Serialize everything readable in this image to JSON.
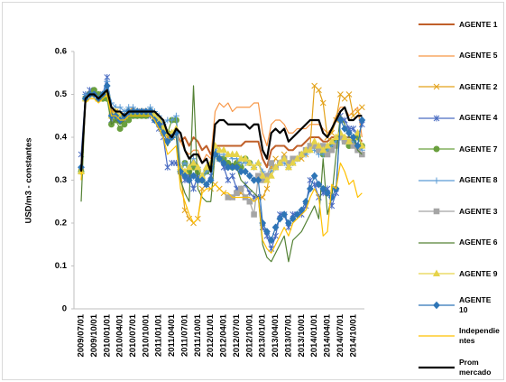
{
  "chart_data": {
    "type": "line",
    "y_label": "USD/m3 - constantes",
    "categories": [
      "2009/07/01",
      null,
      null,
      "2009/10/01",
      null,
      null,
      "2010/01/01",
      null,
      null,
      "2010/04/01",
      null,
      null,
      "2010/07/01",
      null,
      null,
      "2010/10/01",
      null,
      null,
      "2011/01/01",
      null,
      null,
      "2011/04/01",
      null,
      null,
      "2011/07/01",
      null,
      null,
      "2011/10/01",
      null,
      null,
      "2012/01/01",
      null,
      null,
      "2012/04/01",
      null,
      null,
      "2012/07/01",
      null,
      null,
      "2012/10/01",
      null,
      null,
      "2013/01/01",
      null,
      null,
      "2013/04/01",
      null,
      null,
      "2013/07/01",
      null,
      null,
      "2013/10/01",
      null,
      null,
      "2014/01/01",
      null,
      null,
      "2014/04/01",
      null,
      null,
      "2014/07/01",
      null,
      null,
      "2014/10/01",
      null,
      null
    ],
    "ylim": [
      0,
      0.6
    ],
    "yticks": [
      0,
      0.1,
      0.2,
      0.3,
      0.4,
      0.5,
      0.6
    ],
    "grid": false,
    "series": [
      {
        "name": "AGENTE 1",
        "color": "#c0602a",
        "width": 2,
        "marker": null,
        "values": [
          0.32,
          0.49,
          0.5,
          0.5,
          0.49,
          0.5,
          0.51,
          0.46,
          0.46,
          0.45,
          0.45,
          0.46,
          0.46,
          0.46,
          0.46,
          0.46,
          0.46,
          0.45,
          0.44,
          0.43,
          0.41,
          0.4,
          0.41,
          0.39,
          0.4,
          0.38,
          0.4,
          0.39,
          0.37,
          0.38,
          0.36,
          0.38,
          0.38,
          0.38,
          0.38,
          0.38,
          0.38,
          0.38,
          0.39,
          0.39,
          0.39,
          0.39,
          0.35,
          0.33,
          0.37,
          0.38,
          0.38,
          0.38,
          0.37,
          0.37,
          0.38,
          0.38,
          0.39,
          0.4,
          0.4,
          0.4,
          0.39,
          0.39,
          0.4,
          0.4,
          0.41,
          0.4,
          0.4,
          0.4,
          0.4,
          0.39
        ]
      },
      {
        "name": "AGENTE 5",
        "color": "#f79646",
        "width": 1.2,
        "marker": null,
        "values": [
          0.32,
          0.49,
          0.5,
          0.5,
          0.49,
          0.5,
          0.5,
          0.46,
          0.46,
          0.46,
          0.46,
          0.46,
          0.47,
          0.46,
          0.46,
          0.46,
          0.46,
          0.46,
          0.45,
          0.43,
          0.4,
          0.4,
          0.41,
          0.39,
          0.37,
          0.36,
          0.37,
          0.37,
          0.34,
          0.36,
          0.35,
          0.46,
          0.48,
          0.47,
          0.48,
          0.46,
          0.47,
          0.47,
          0.47,
          0.47,
          0.48,
          0.48,
          0.41,
          0.38,
          0.43,
          0.44,
          0.44,
          0.43,
          0.41,
          0.41,
          0.42,
          0.42,
          0.42,
          0.43,
          0.43,
          0.43,
          0.42,
          0.41,
          0.42,
          0.45,
          0.47,
          0.47,
          0.45,
          0.46,
          0.47,
          0.4
        ]
      },
      {
        "name": "AGENTE 2",
        "color": "#e3a21a",
        "width": 1.2,
        "marker": "x",
        "values": [
          0.32,
          0.49,
          0.5,
          0.5,
          0.49,
          0.5,
          0.5,
          0.46,
          0.46,
          0.45,
          0.45,
          0.46,
          0.46,
          0.46,
          0.46,
          0.46,
          0.46,
          0.45,
          0.44,
          0.42,
          0.4,
          0.4,
          0.41,
          0.32,
          0.23,
          0.21,
          0.2,
          0.21,
          0.28,
          0.29,
          0.28,
          0.29,
          0.28,
          0.27,
          0.26,
          0.26,
          0.27,
          0.27,
          0.26,
          0.27,
          0.26,
          0.26,
          0.26,
          0.28,
          0.33,
          0.35,
          0.34,
          0.36,
          0.33,
          0.34,
          0.35,
          0.35,
          0.36,
          0.38,
          0.52,
          0.51,
          0.48,
          0.4,
          0.41,
          0.44,
          0.5,
          0.49,
          0.5,
          0.45,
          0.46,
          0.47
        ]
      },
      {
        "name": "AGENTE 4",
        "color": "#4a6cc2",
        "width": 1.2,
        "marker": "star",
        "values": [
          0.36,
          0.5,
          0.51,
          0.5,
          0.5,
          0.5,
          0.54,
          0.44,
          0.45,
          0.44,
          0.44,
          0.45,
          0.45,
          0.45,
          0.46,
          0.45,
          0.45,
          0.44,
          0.42,
          0.4,
          0.33,
          0.34,
          0.34,
          0.32,
          0.3,
          0.31,
          0.28,
          0.31,
          0.3,
          0.29,
          0.31,
          0.37,
          0.35,
          0.33,
          0.3,
          0.31,
          0.28,
          0.28,
          0.29,
          0.27,
          0.26,
          0.26,
          0.19,
          0.17,
          0.14,
          0.17,
          0.22,
          0.22,
          0.19,
          0.22,
          0.22,
          0.22,
          0.24,
          0.3,
          0.29,
          0.26,
          0.27,
          0.28,
          0.24,
          0.27,
          0.45,
          0.44,
          0.42,
          0.42,
          0.4,
          0.43
        ]
      },
      {
        "name": "AGENTE 7",
        "color": "#6aa03e",
        "width": 1.2,
        "marker": "circle",
        "values": [
          0.32,
          0.49,
          0.5,
          0.51,
          0.5,
          0.49,
          0.49,
          0.43,
          0.44,
          0.42,
          0.43,
          0.44,
          0.45,
          0.45,
          0.45,
          0.45,
          0.46,
          0.45,
          0.44,
          0.42,
          0.41,
          0.44,
          0.44,
          0.32,
          0.34,
          0.32,
          0.33,
          0.32,
          0.3,
          0.32,
          0.33,
          0.36,
          0.35,
          0.35,
          0.34,
          0.33,
          0.34,
          0.33,
          0.35,
          0.34,
          null,
          null,
          null,
          null,
          null,
          null,
          null,
          null,
          null,
          null,
          null,
          null,
          null,
          null,
          0.38,
          0.37,
          0.36,
          0.37,
          0.38,
          0.39,
          0.4,
          0.39,
          0.38,
          0.39,
          0.4,
          0.38
        ]
      },
      {
        "name": "AGENTE 8",
        "color": "#5b9bd5",
        "width": 1.2,
        "marker": "plus",
        "values": [
          0.33,
          0.5,
          0.5,
          0.5,
          0.49,
          0.5,
          0.53,
          0.48,
          0.47,
          0.47,
          0.46,
          0.47,
          0.47,
          0.46,
          0.46,
          0.46,
          0.47,
          0.46,
          0.45,
          0.43,
          0.44,
          0.44,
          0.45,
          0.33,
          0.34,
          0.33,
          0.35,
          0.33,
          0.31,
          0.32,
          0.33,
          0.37,
          0.36,
          0.36,
          0.36,
          0.35,
          0.35,
          0.34,
          0.34,
          0.34,
          0.33,
          0.34,
          0.32,
          0.31,
          0.32,
          0.33,
          0.34,
          0.34,
          0.33,
          0.34,
          0.35,
          0.36,
          0.36,
          0.37,
          0.37,
          0.36,
          0.36,
          0.37,
          0.38,
          0.39,
          0.4,
          0.4,
          0.39,
          0.39,
          0.38,
          0.37
        ]
      },
      {
        "name": "AGENTE 3",
        "color": "#a5a5a5",
        "width": 1.2,
        "marker": "square",
        "values": [
          null,
          null,
          null,
          null,
          null,
          null,
          null,
          null,
          null,
          null,
          null,
          null,
          null,
          null,
          null,
          null,
          null,
          null,
          null,
          null,
          null,
          null,
          null,
          null,
          null,
          null,
          null,
          null,
          null,
          null,
          null,
          null,
          null,
          null,
          0.26,
          0.26,
          0.27,
          0.28,
          0.26,
          0.25,
          0.22,
          0.31,
          0.3,
          0.31,
          0.34,
          0.33,
          0.34,
          0.35,
          0.34,
          0.35,
          0.35,
          0.36,
          0.37,
          0.38,
          0.38,
          0.37,
          0.38,
          0.36,
          0.37,
          0.38,
          0.4,
          0.39,
          0.39,
          0.38,
          0.37,
          0.36
        ]
      },
      {
        "name": "AGENTE 6",
        "color": "#548235",
        "width": 1.2,
        "marker": null,
        "values": [
          0.25,
          0.49,
          0.5,
          0.5,
          0.49,
          0.5,
          0.51,
          0.43,
          0.44,
          0.43,
          0.44,
          0.45,
          0.45,
          0.45,
          0.45,
          0.45,
          0.46,
          0.44,
          0.44,
          0.4,
          0.38,
          0.4,
          0.4,
          0.3,
          0.27,
          0.25,
          0.52,
          0.28,
          0.26,
          0.25,
          0.25,
          0.36,
          0.35,
          0.34,
          0.33,
          0.34,
          0.33,
          0.3,
          0.29,
          0.28,
          0.27,
          0.26,
          0.15,
          0.12,
          0.11,
          0.13,
          0.15,
          0.17,
          0.11,
          0.16,
          0.17,
          0.18,
          0.2,
          0.22,
          0.24,
          0.21,
          0.35,
          0.22,
          0.26,
          0.36,
          0.45,
          0.43,
          0.4,
          0.4,
          0.37,
          0.36
        ]
      },
      {
        "name": "AGENTE 9",
        "color": "#e6d34a",
        "width": 1.2,
        "marker": "triangle",
        "values": [
          0.32,
          0.49,
          0.5,
          0.5,
          0.49,
          0.5,
          0.5,
          0.45,
          0.46,
          0.45,
          0.45,
          0.46,
          0.46,
          0.46,
          0.46,
          0.46,
          0.46,
          0.45,
          0.44,
          0.42,
          0.41,
          0.41,
          0.42,
          0.33,
          0.32,
          0.33,
          0.34,
          0.33,
          0.31,
          0.33,
          0.34,
          0.38,
          0.37,
          0.37,
          0.36,
          0.36,
          0.36,
          0.35,
          0.35,
          0.34,
          0.33,
          0.34,
          0.31,
          0.3,
          0.31,
          0.33,
          0.34,
          0.35,
          0.33,
          0.34,
          0.35,
          0.36,
          0.37,
          0.37,
          0.39,
          0.38,
          0.37,
          0.38,
          0.39,
          0.4,
          0.41,
          0.4,
          0.39,
          0.4,
          0.41,
          0.38
        ]
      },
      {
        "name": "AGENTE 10",
        "color": "#2e75b6",
        "width": 1.2,
        "marker": "diamond",
        "values": [
          0.33,
          0.49,
          0.5,
          0.5,
          0.49,
          0.5,
          0.52,
          0.45,
          0.45,
          0.44,
          0.45,
          0.46,
          0.46,
          0.46,
          0.46,
          0.46,
          0.46,
          0.44,
          0.43,
          0.41,
          0.39,
          0.4,
          0.41,
          0.32,
          0.31,
          0.3,
          0.31,
          0.3,
          0.3,
          0.29,
          0.3,
          0.36,
          0.35,
          0.34,
          0.33,
          0.33,
          0.33,
          0.32,
          0.32,
          0.31,
          0.3,
          0.3,
          0.2,
          0.18,
          0.16,
          0.19,
          0.21,
          0.22,
          0.2,
          0.21,
          0.22,
          0.23,
          0.25,
          0.28,
          0.31,
          0.29,
          0.28,
          0.27,
          0.26,
          0.28,
          0.44,
          0.42,
          0.41,
          0.4,
          0.38,
          0.44
        ]
      },
      {
        "name": "Independientes",
        "color": "#ffc000",
        "width": 1.2,
        "marker": null,
        "values": [
          0.3,
          0.48,
          0.49,
          0.49,
          0.48,
          0.49,
          0.5,
          0.45,
          0.45,
          0.44,
          0.44,
          0.45,
          0.45,
          0.45,
          0.45,
          0.45,
          0.45,
          0.44,
          0.42,
          0.4,
          0.36,
          0.37,
          0.38,
          0.28,
          0.25,
          0.22,
          0.2,
          0.21,
          0.27,
          0.28,
          0.28,
          0.29,
          0.28,
          0.27,
          0.27,
          0.26,
          0.26,
          0.26,
          0.26,
          0.26,
          0.25,
          0.26,
          0.16,
          0.14,
          0.13,
          0.15,
          0.17,
          0.19,
          0.17,
          0.2,
          0.21,
          0.22,
          0.23,
          0.26,
          0.28,
          0.26,
          0.17,
          0.18,
          0.29,
          0.28,
          0.34,
          0.32,
          0.29,
          0.3,
          0.26,
          0.27
        ]
      },
      {
        "name": "Prom mercado",
        "color": "#000000",
        "width": 2.2,
        "marker": null,
        "values": [
          0.32,
          0.49,
          0.5,
          0.5,
          0.49,
          0.5,
          0.51,
          0.47,
          0.46,
          0.46,
          0.45,
          0.46,
          0.46,
          0.46,
          0.46,
          0.46,
          0.46,
          0.46,
          0.45,
          0.44,
          0.41,
          0.4,
          0.42,
          0.41,
          0.37,
          0.35,
          0.36,
          0.36,
          0.34,
          0.35,
          0.32,
          0.43,
          0.44,
          0.44,
          0.43,
          0.43,
          0.43,
          0.43,
          0.43,
          0.42,
          0.43,
          0.43,
          0.37,
          0.35,
          0.41,
          0.42,
          0.41,
          0.42,
          0.39,
          0.4,
          0.41,
          0.42,
          0.43,
          0.44,
          0.44,
          0.44,
          0.41,
          0.4,
          0.42,
          0.44,
          0.46,
          0.47,
          0.44,
          0.44,
          0.45,
          0.45
        ]
      }
    ]
  }
}
